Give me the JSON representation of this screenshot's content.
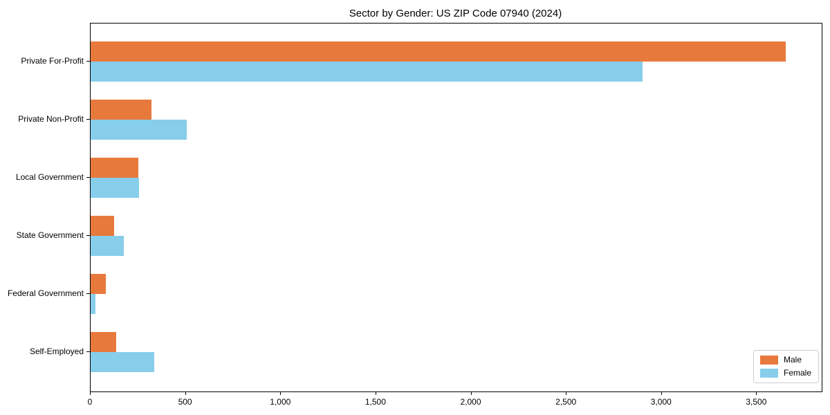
{
  "title": "Sector by Gender: US ZIP Code 07940 (2024)",
  "chart_data": {
    "type": "bar",
    "orientation": "horizontal",
    "title": "Sector by Gender: US ZIP Code 07940 (2024)",
    "categories": [
      "Private For-Profit",
      "Private Non-Profit",
      "Local Government",
      "State Government",
      "Federal Government",
      "Self-Employed"
    ],
    "series": [
      {
        "name": "Male",
        "color": "#e8793d",
        "values": [
          3650,
          320,
          250,
          125,
          80,
          135
        ]
      },
      {
        "name": "Female",
        "color": "#87ceeb",
        "values": [
          2900,
          505,
          255,
          175,
          25,
          335
        ]
      }
    ],
    "xlabel": "",
    "ylabel": "",
    "xlim": [
      0,
      3840
    ],
    "x_ticks": [
      0,
      500,
      1000,
      1500,
      2000,
      2500,
      3000,
      3500
    ],
    "x_tick_labels": [
      "0",
      "500",
      "1,000",
      "1,500",
      "2,000",
      "2,500",
      "3,000",
      "3,500"
    ],
    "legend_position": "lower right",
    "grid": false
  }
}
